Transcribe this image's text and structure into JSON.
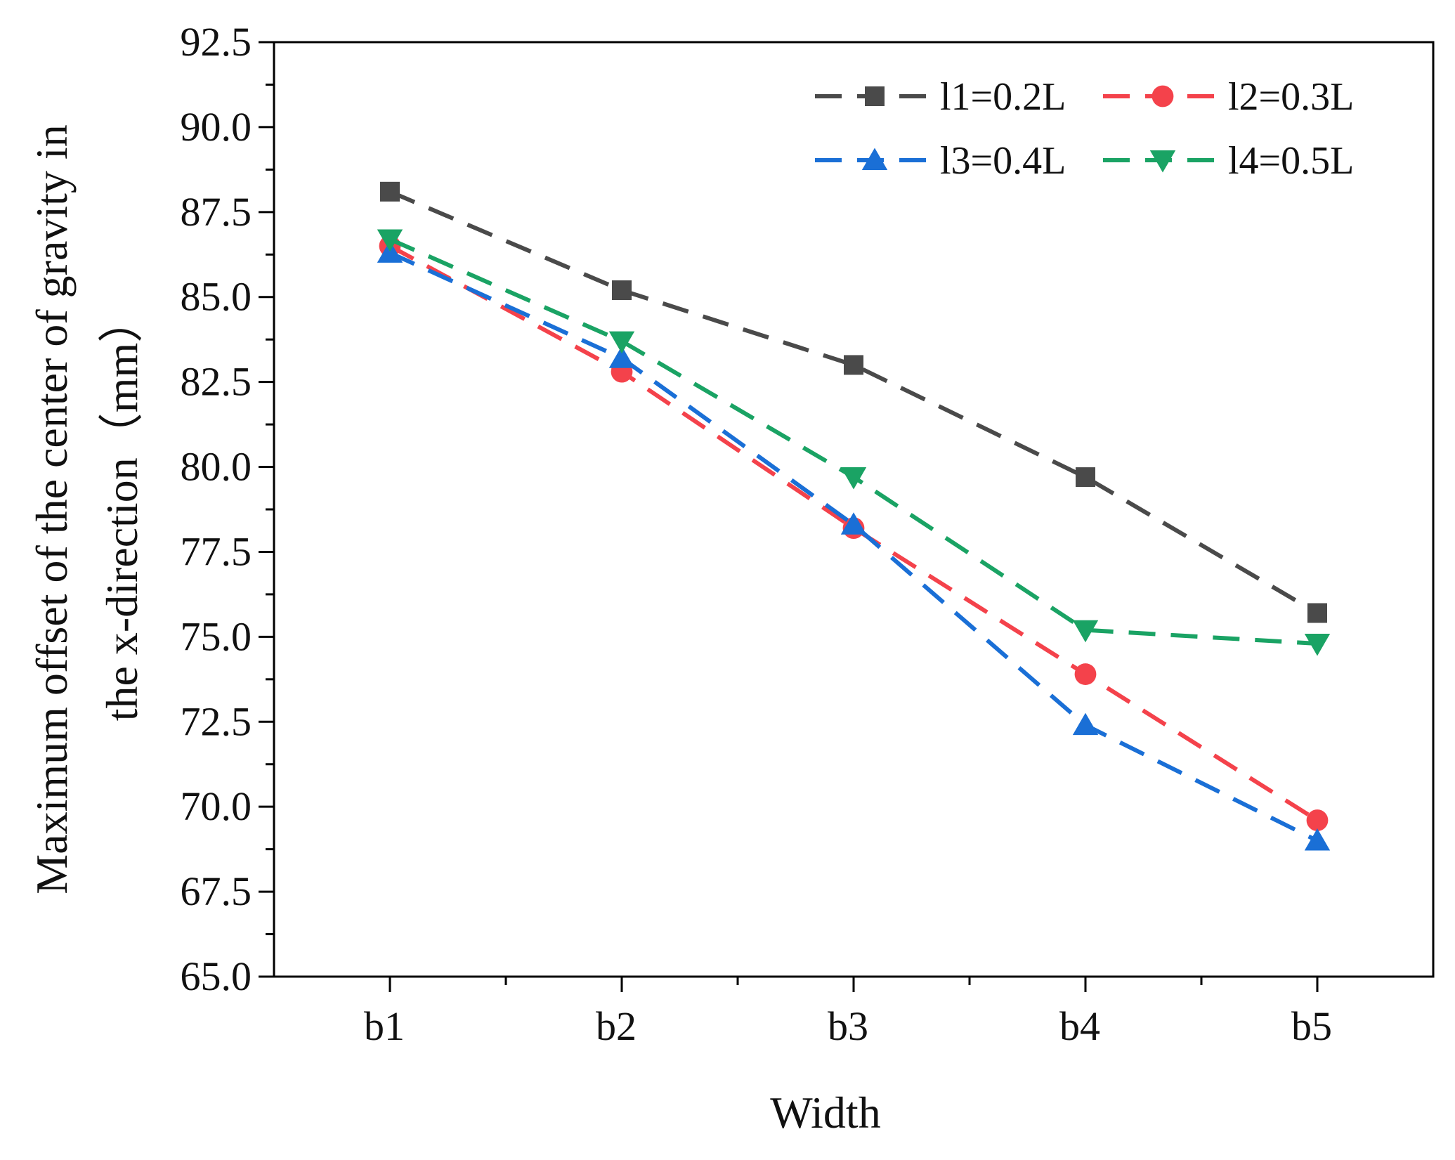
{
  "chart_data": {
    "type": "line",
    "title": "",
    "xlabel": "Width",
    "ylabel_lines": [
      "Maximum offset of the center of gravity in",
      "the x-direction（mm）"
    ],
    "categories": [
      "b1",
      "b2",
      "b3",
      "b4",
      "b5"
    ],
    "ylim": [
      65.0,
      92.5
    ],
    "yticks": [
      "65.0",
      "67.5",
      "70.0",
      "72.5",
      "75.0",
      "77.5",
      "80.0",
      "82.5",
      "85.0",
      "87.5",
      "90.0",
      "92.5"
    ],
    "legend_position": "top-right",
    "series": [
      {
        "name": "l1=0.2L",
        "color": "#4a4a4a",
        "marker": "square",
        "values": [
          88.1,
          85.2,
          83.0,
          79.7,
          75.7
        ]
      },
      {
        "name": "l2=0.3L",
        "color": "#f4424b",
        "marker": "circle",
        "values": [
          86.5,
          82.8,
          78.2,
          73.9,
          69.6
        ]
      },
      {
        "name": "l3=0.4L",
        "color": "#1a6fd6",
        "marker": "triangle-up",
        "values": [
          86.3,
          83.2,
          78.3,
          72.4,
          69.0
        ]
      },
      {
        "name": "l4=0.5L",
        "color": "#1aa364",
        "marker": "triangle-down",
        "values": [
          86.7,
          83.7,
          79.7,
          75.2,
          74.8
        ]
      }
    ]
  }
}
